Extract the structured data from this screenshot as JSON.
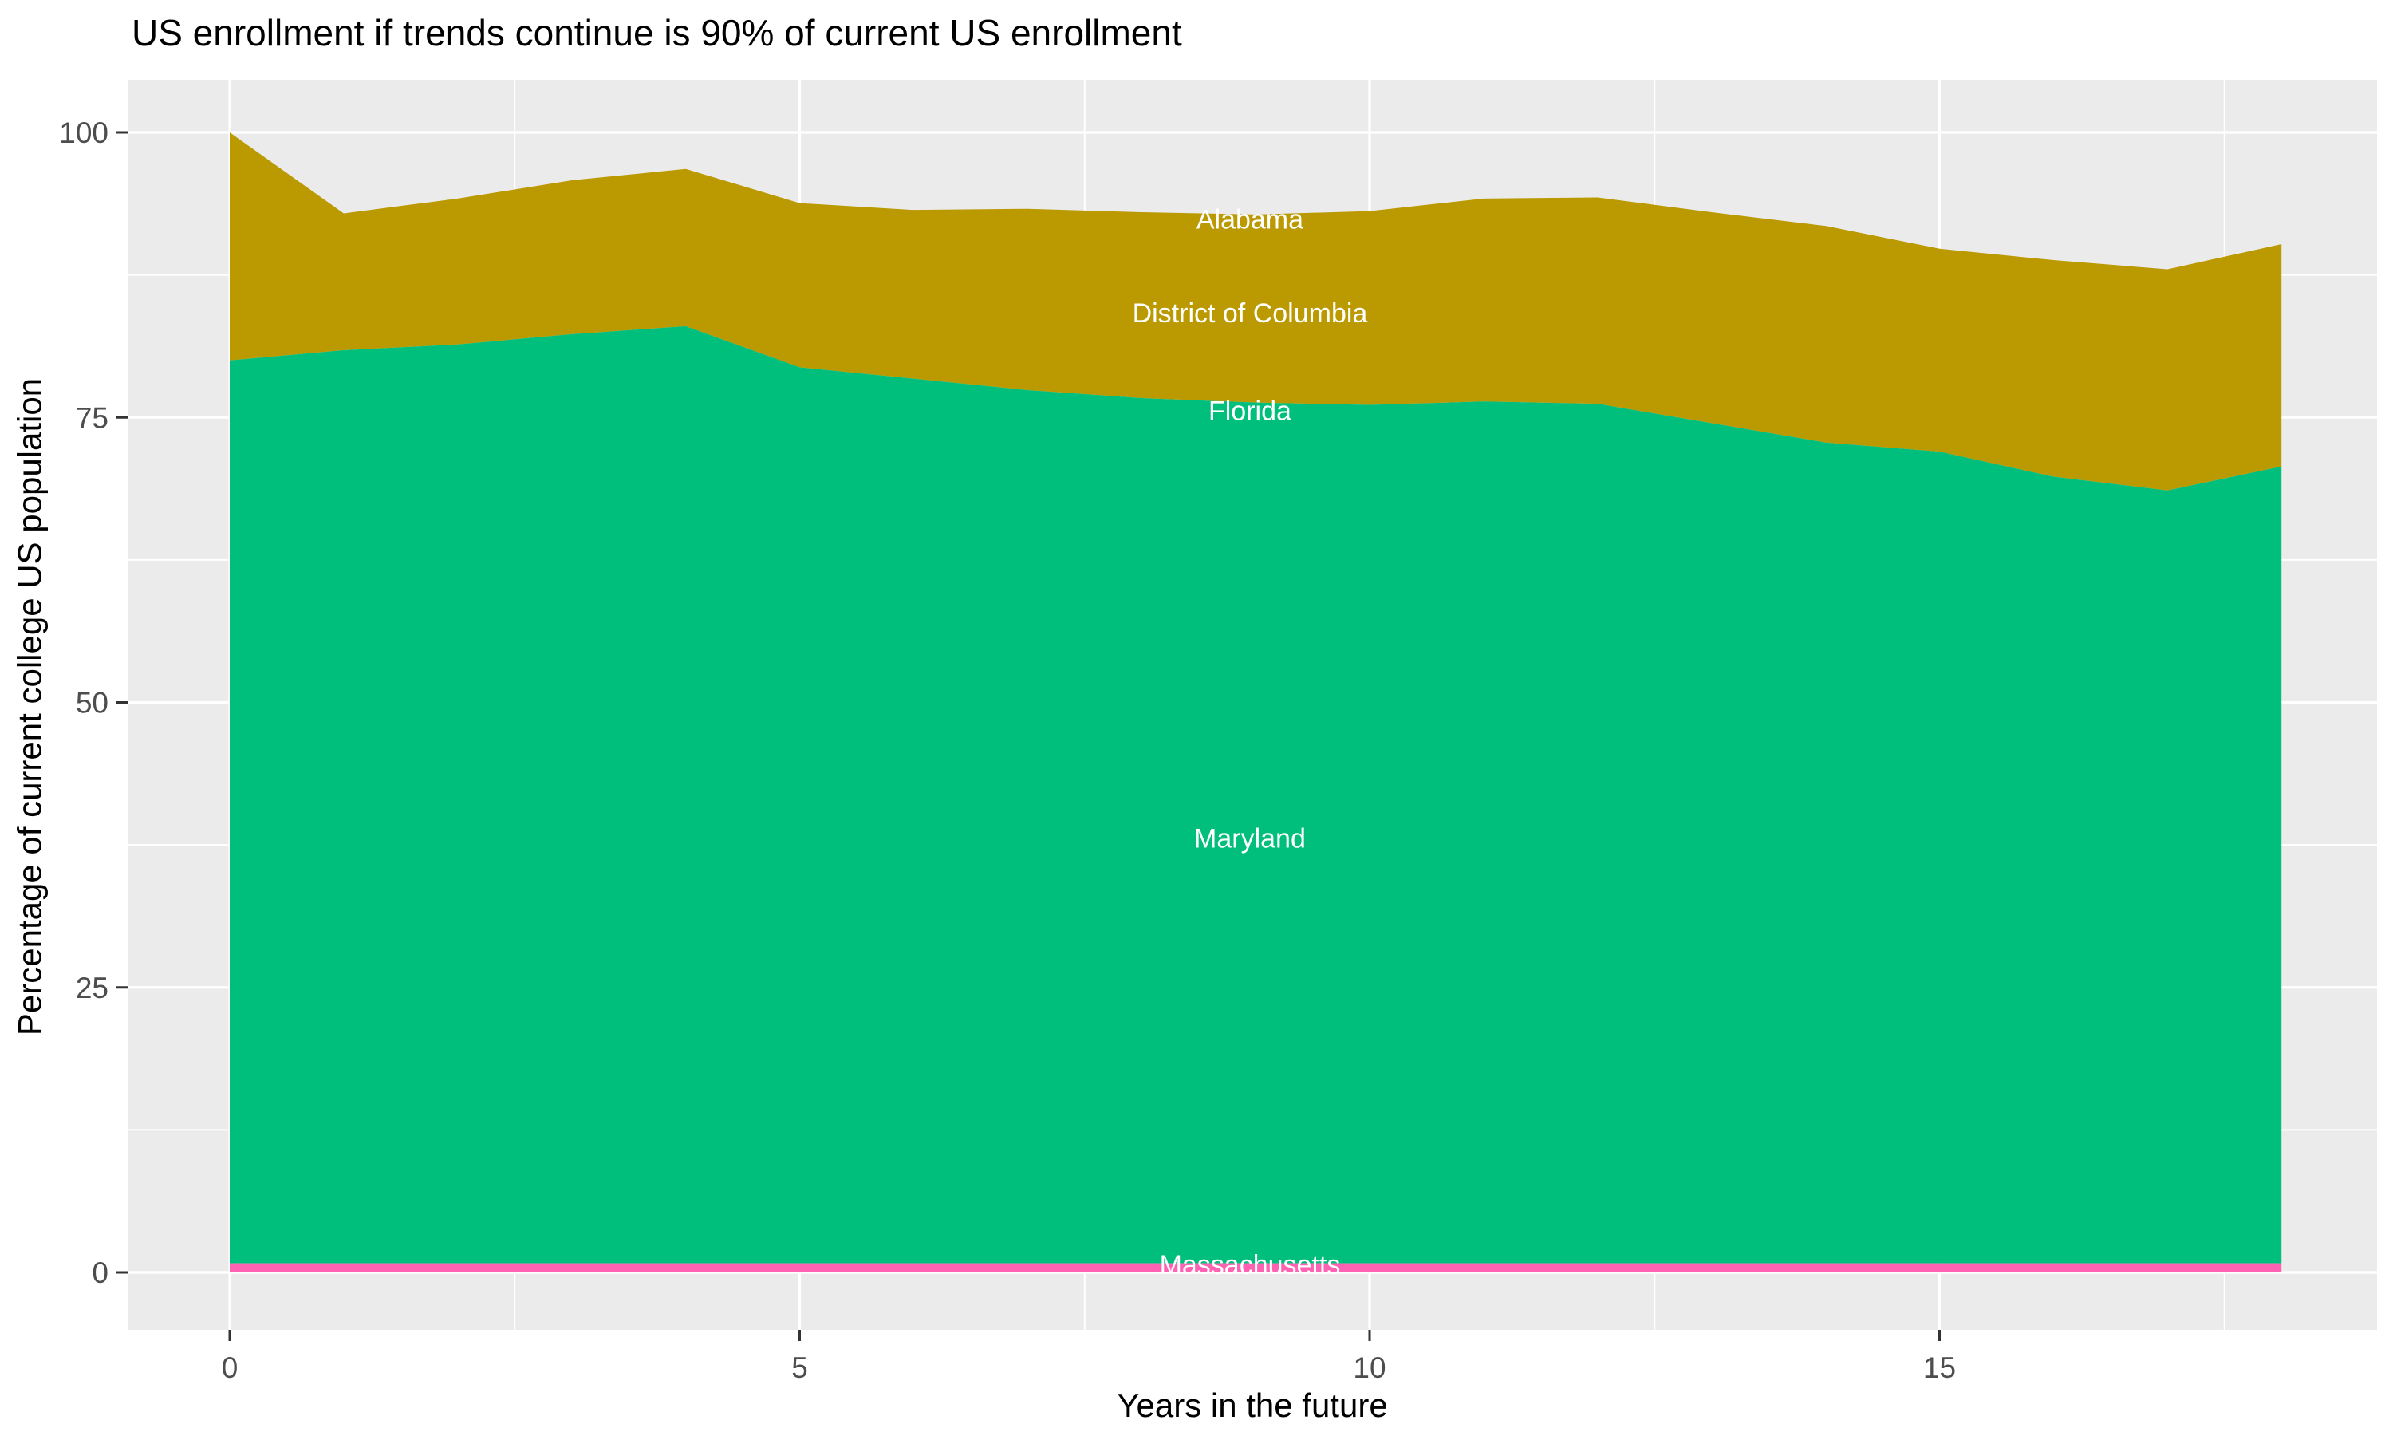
{
  "figure": {
    "title": "US enrollment if trends continue is 90% of current US enrollment",
    "x_axis_title": "Years in the future",
    "y_axis_title": "Percentage of current college US population"
  },
  "theme": {
    "panel_background": "#EBEBEB",
    "gridline_color": "#FFFFFF",
    "tick_mark_color": "#333333",
    "tick_label_color": "#4D4D4D",
    "title_color": "#000000",
    "area_label_color": "#FFFFFF"
  },
  "chart_data": {
    "type": "area",
    "stacked": true,
    "title": "US enrollment if trends continue is 90% of current US enrollment",
    "xlabel": "Years in the future",
    "ylabel": "Percentage of current college US population",
    "xlim": [
      -0.9,
      18.9
    ],
    "ylim": [
      -5,
      105
    ],
    "grid": "on",
    "legend": "none",
    "x": [
      0,
      1,
      2,
      3,
      4,
      5,
      6,
      7,
      8,
      9,
      10,
      11,
      12,
      13,
      14,
      15,
      16,
      17,
      18
    ],
    "x_ticks": [
      0,
      5,
      10,
      15
    ],
    "x_tick_labels": [
      "0",
      "5",
      "10",
      "15"
    ],
    "x_minor_ticks": [
      2.5,
      7.5,
      12.5,
      17.5
    ],
    "y_ticks": [
      0,
      25,
      50,
      75,
      100
    ],
    "y_tick_labels": [
      "0",
      "25",
      "50",
      "75",
      "100"
    ],
    "y_minor_ticks": [
      12.5,
      37.5,
      62.5,
      87.5
    ],
    "bands": [
      {
        "id": "olive",
        "states": [
          "Alabama",
          "District of Columbia",
          "Florida"
        ],
        "color": "#BB9900",
        "top": [
          100,
          92.9,
          94.2,
          95.8,
          96.8,
          93.8,
          93.2,
          93.3,
          93.0,
          92.8,
          93.1,
          94.2,
          94.3,
          93.0,
          91.8,
          89.8,
          88.8,
          88.0,
          90.2
        ],
        "bottom": [
          80,
          80.9,
          81.4,
          82.3,
          83.0,
          79.4,
          78.4,
          77.4,
          76.7,
          76.3,
          76.1,
          76.4,
          76.2,
          74.5,
          72.8,
          72.0,
          69.8,
          68.6,
          70.7
        ]
      },
      {
        "id": "green",
        "states": [
          "Maryland"
        ],
        "color": "#00BE7C",
        "top": [
          80,
          80.9,
          81.4,
          82.3,
          83.0,
          79.4,
          78.4,
          77.4,
          76.7,
          76.3,
          76.1,
          76.4,
          76.2,
          74.5,
          72.8,
          72.0,
          69.8,
          68.6,
          70.7
        ],
        "bottom": 0.8
      },
      {
        "id": "pink",
        "states": [
          "Massachusetts"
        ],
        "color": "#FF61B3",
        "top": 0.8,
        "bottom": 0
      }
    ],
    "area_labels": [
      {
        "text": "Alabama",
        "x": 8.95,
        "y": 92.4
      },
      {
        "text": "District of Columbia",
        "x": 8.95,
        "y": 84.2
      },
      {
        "text": "Florida",
        "x": 8.95,
        "y": 75.6
      },
      {
        "text": "Maryland",
        "x": 8.95,
        "y": 38.1
      },
      {
        "text": "Massachusetts",
        "x": 8.95,
        "y": 0.7
      }
    ]
  }
}
